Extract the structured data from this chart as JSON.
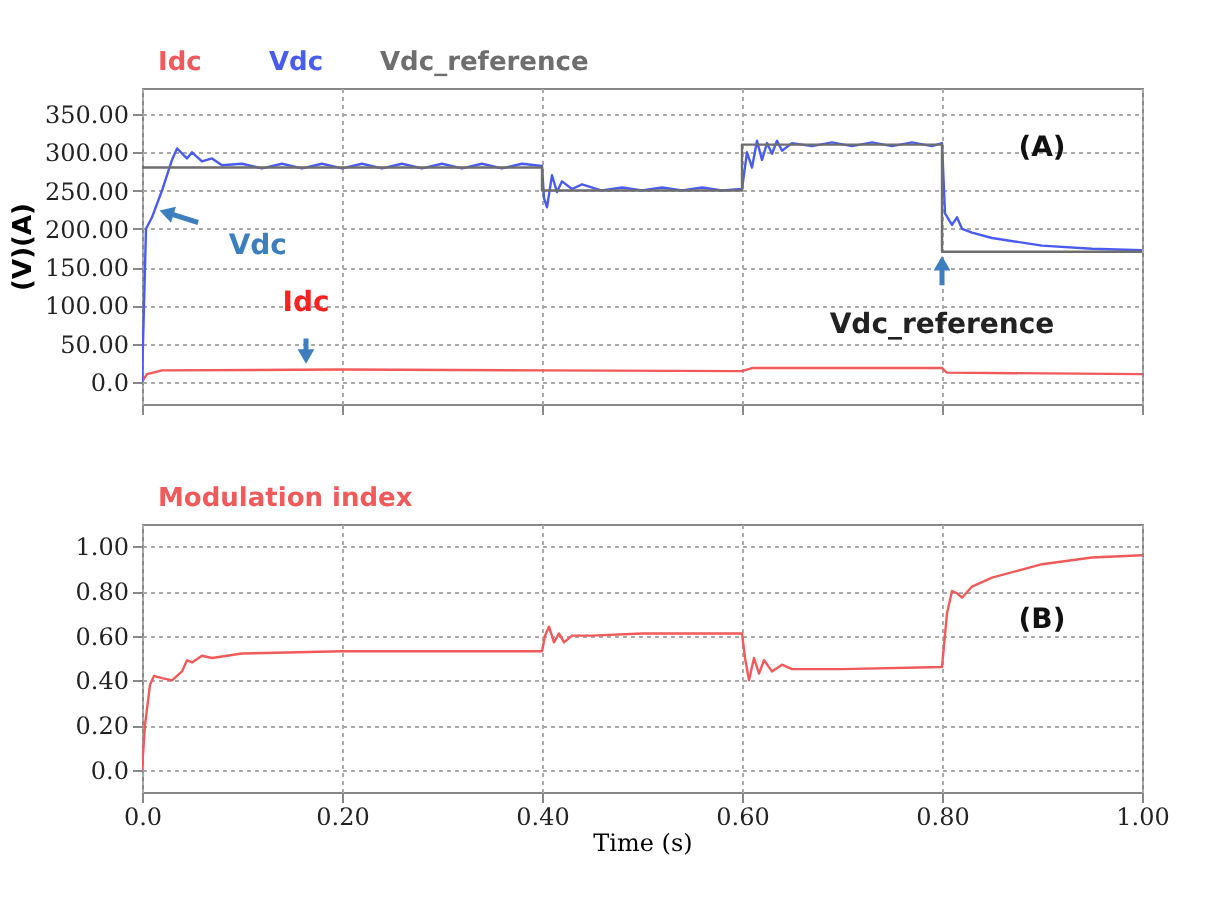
{
  "chart_data": [
    {
      "type": "line",
      "ylabel": "(V)(A)",
      "legend": "top",
      "grid": true,
      "tick_labels": "y",
      "xlim": [
        0,
        1
      ],
      "ylim": [
        -29,
        384
      ],
      "xticks": [
        0,
        0.2,
        0.4,
        0.6,
        0.8,
        1
      ],
      "yticks": [
        {
          "value": 0,
          "label": "0.0"
        },
        {
          "value": 50,
          "label": "50.00"
        },
        {
          "value": 100,
          "label": "100.00"
        },
        {
          "value": 150,
          "label": "150.00"
        },
        {
          "value": 200,
          "label": "200.00"
        },
        {
          "value": 250,
          "label": "250.00"
        },
        {
          "value": 300,
          "label": "300.00"
        },
        {
          "value": 350,
          "label": "350.00"
        }
      ],
      "annotations": [
        {
          "text": "Vdc",
          "x": 0.015,
          "y": 225
        },
        {
          "text": "Idc",
          "x": 0.164,
          "y": 20
        },
        {
          "text": "Vdc_reference",
          "x": 0.8,
          "y": 168
        },
        "(A)"
      ],
      "series": [
        {
          "name": "Idc",
          "color": "#f05a5a",
          "x": [
            0,
            0.005,
            0.02,
            0.2,
            0.4,
            0.6,
            0.61,
            0.8,
            0.805,
            1
          ],
          "values": [
            0,
            10,
            15,
            16,
            15,
            14,
            18,
            18,
            12,
            10
          ]
        },
        {
          "name": "Vdc",
          "color": "#4a5cf0",
          "x": [
            0,
            0.004,
            0.01,
            0.02,
            0.03,
            0.035,
            0.045,
            0.05,
            0.06,
            0.07,
            0.08,
            0.1,
            0.12,
            0.14,
            0.16,
            0.18,
            0.2,
            0.22,
            0.24,
            0.26,
            0.28,
            0.3,
            0.32,
            0.34,
            0.36,
            0.38,
            0.4,
            0.402,
            0.405,
            0.41,
            0.415,
            0.42,
            0.43,
            0.44,
            0.46,
            0.48,
            0.5,
            0.52,
            0.54,
            0.56,
            0.58,
            0.6,
            0.605,
            0.61,
            0.615,
            0.62,
            0.625,
            0.63,
            0.635,
            0.64,
            0.65,
            0.67,
            0.69,
            0.71,
            0.73,
            0.75,
            0.77,
            0.79,
            0.8,
            0.803,
            0.81,
            0.815,
            0.82,
            0.83,
            0.85,
            0.9,
            0.95,
            1
          ],
          "values": [
            0,
            200,
            215,
            250,
            290,
            305,
            292,
            300,
            288,
            292,
            283,
            285,
            279,
            285,
            279,
            285,
            279,
            285,
            279,
            285,
            279,
            285,
            279,
            285,
            279,
            285,
            282,
            240,
            228,
            270,
            248,
            262,
            252,
            258,
            250,
            254,
            250,
            254,
            250,
            254,
            250,
            252,
            300,
            280,
            315,
            290,
            312,
            298,
            315,
            302,
            312,
            308,
            313,
            308,
            313,
            308,
            313,
            308,
            312,
            220,
            205,
            215,
            200,
            195,
            188,
            178,
            174,
            172
          ]
        },
        {
          "name": "Vdc_reference",
          "color": "#6e6e6e",
          "x": [
            0,
            0.4,
            0.4,
            0.6,
            0.6,
            0.8,
            0.8,
            1
          ],
          "values": [
            280,
            280,
            250,
            250,
            310,
            310,
            170,
            170
          ]
        }
      ]
    },
    {
      "type": "line",
      "xlabel": "Time (s)",
      "legend": "top",
      "grid": true,
      "xlim": [
        0,
        1
      ],
      "ylim": [
        -0.1,
        1.1
      ],
      "xticks": [
        {
          "value": 0,
          "label": "0.0"
        },
        {
          "value": 0.2,
          "label": "0.20"
        },
        {
          "value": 0.4,
          "label": "0.40"
        },
        {
          "value": 0.6,
          "label": "0.60"
        },
        {
          "value": 0.8,
          "label": "0.80"
        },
        {
          "value": 1,
          "label": "1.00"
        }
      ],
      "yticks": [
        {
          "value": 0,
          "label": "0.0"
        },
        {
          "value": 0.2,
          "label": "0.20"
        },
        {
          "value": 0.4,
          "label": "0.40"
        },
        {
          "value": 0.6,
          "label": "0.60"
        },
        {
          "value": 0.8,
          "label": "0.80"
        },
        {
          "value": 1,
          "label": "1.00"
        }
      ],
      "annotations": [
        "(B)"
      ],
      "series": [
        {
          "name": "Modulation index",
          "color": "#f05a5a",
          "x": [
            0,
            0.003,
            0.008,
            0.012,
            0.02,
            0.03,
            0.04,
            0.045,
            0.05,
            0.06,
            0.07,
            0.1,
            0.2,
            0.3,
            0.4,
            0.403,
            0.407,
            0.412,
            0.417,
            0.422,
            0.43,
            0.45,
            0.5,
            0.6,
            0.603,
            0.607,
            0.612,
            0.617,
            0.622,
            0.63,
            0.64,
            0.65,
            0.7,
            0.8,
            0.805,
            0.81,
            0.815,
            0.82,
            0.83,
            0.85,
            0.9,
            0.95,
            1
          ],
          "values": [
            0,
            0.2,
            0.38,
            0.42,
            0.41,
            0.4,
            0.44,
            0.49,
            0.48,
            0.51,
            0.5,
            0.52,
            0.53,
            0.53,
            0.53,
            0.6,
            0.64,
            0.57,
            0.61,
            0.57,
            0.6,
            0.6,
            0.61,
            0.61,
            0.5,
            0.4,
            0.5,
            0.43,
            0.49,
            0.44,
            0.47,
            0.45,
            0.45,
            0.46,
            0.7,
            0.8,
            0.79,
            0.77,
            0.82,
            0.86,
            0.92,
            0.95,
            0.96
          ]
        }
      ]
    }
  ]
}
